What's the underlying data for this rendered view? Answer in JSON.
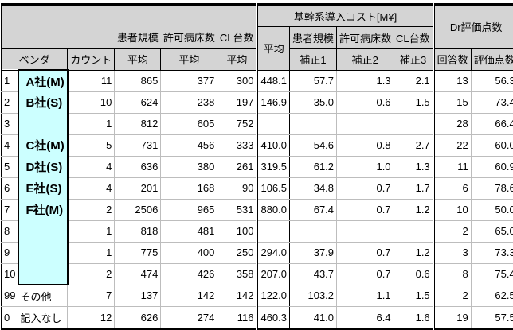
{
  "header": {
    "group_left": {
      "patient_scale": "患者規模",
      "beds": "許可病床数",
      "cl_count": "CL台数"
    },
    "vendor": "ベンダ",
    "count": "カウント",
    "avg": "平均",
    "cost_group": "基幹系導入コスト[M¥]",
    "cost_avg": "平均",
    "cost_sub": {
      "patient_scale": "患者規模",
      "beds": "許可病床数",
      "cl_count": "CL台数"
    },
    "corr1": "補正1",
    "corr2": "補正2",
    "corr3": "補正3",
    "dr_group": "Dr評価点数",
    "answers": "回答数",
    "score": "評価点数"
  },
  "rows": [
    {
      "id": "1",
      "vendor": "A社(M)",
      "count": "11",
      "patient": "865",
      "beds": "377",
      "cl": "300",
      "cost": "448.1",
      "c1": "57.7",
      "c2": "1.3",
      "c3": "2.1",
      "answers": "13",
      "score": "56.3"
    },
    {
      "id": "2",
      "vendor": "B社(S)",
      "count": "10",
      "patient": "624",
      "beds": "238",
      "cl": "197",
      "cost": "146.9",
      "c1": "35.0",
      "c2": "0.6",
      "c3": "1.5",
      "answers": "15",
      "score": "73.4"
    },
    {
      "id": "3",
      "vendor": "",
      "count": "1",
      "patient": "812",
      "beds": "605",
      "cl": "752",
      "cost": "",
      "c1": "",
      "c2": "",
      "c3": "",
      "answers": "28",
      "score": "66.4"
    },
    {
      "id": "4",
      "vendor": "C社(M)",
      "count": "5",
      "patient": "731",
      "beds": "456",
      "cl": "333",
      "cost": "410.0",
      "c1": "54.6",
      "c2": "0.8",
      "c3": "2.7",
      "answers": "22",
      "score": "60.0"
    },
    {
      "id": "5",
      "vendor": "D社(S)",
      "count": "4",
      "patient": "636",
      "beds": "380",
      "cl": "261",
      "cost": "319.5",
      "c1": "61.2",
      "c2": "1.0",
      "c3": "1.3",
      "answers": "11",
      "score": "60.9"
    },
    {
      "id": "6",
      "vendor": "E社(S)",
      "count": "4",
      "patient": "201",
      "beds": "168",
      "cl": "90",
      "cost": "106.5",
      "c1": "34.8",
      "c2": "0.7",
      "c3": "1.7",
      "answers": "6",
      "score": "78.6"
    },
    {
      "id": "7",
      "vendor": "F社(M)",
      "count": "2",
      "patient": "2506",
      "beds": "965",
      "cl": "531",
      "cost": "880.0",
      "c1": "67.4",
      "c2": "0.7",
      "c3": "1.2",
      "answers": "10",
      "score": "50.0"
    },
    {
      "id": "8",
      "vendor": "",
      "count": "1",
      "patient": "818",
      "beds": "481",
      "cl": "100",
      "cost": "",
      "c1": "",
      "c2": "",
      "c3": "",
      "answers": "2",
      "score": "65.0"
    },
    {
      "id": "9",
      "vendor": "",
      "count": "1",
      "patient": "775",
      "beds": "400",
      "cl": "250",
      "cost": "294.0",
      "c1": "37.9",
      "c2": "0.7",
      "c3": "1.2",
      "answers": "3",
      "score": "73.3"
    },
    {
      "id": "10",
      "vendor": "",
      "count": "2",
      "patient": "474",
      "beds": "426",
      "cl": "358",
      "cost": "207.0",
      "c1": "43.7",
      "c2": "0.7",
      "c3": "0.6",
      "answers": "8",
      "score": "75.4"
    },
    {
      "id": "99",
      "vendor": "その他",
      "count": "7",
      "patient": "137",
      "beds": "142",
      "cl": "142",
      "cost": "122.0",
      "c1": "103.2",
      "c2": "1.1",
      "c3": "1.5",
      "answers": "2",
      "score": "62.5"
    },
    {
      "id": "0",
      "vendor": "記入なし",
      "count": "12",
      "patient": "626",
      "beds": "274",
      "cl": "116",
      "cost": "460.3",
      "c1": "41.0",
      "c2": "6.4",
      "c3": "1.6",
      "answers": "19",
      "score": "57.5"
    }
  ],
  "colors": {
    "vendor_highlight": "#ccffff",
    "header_bg": "#d4d4d4"
  }
}
